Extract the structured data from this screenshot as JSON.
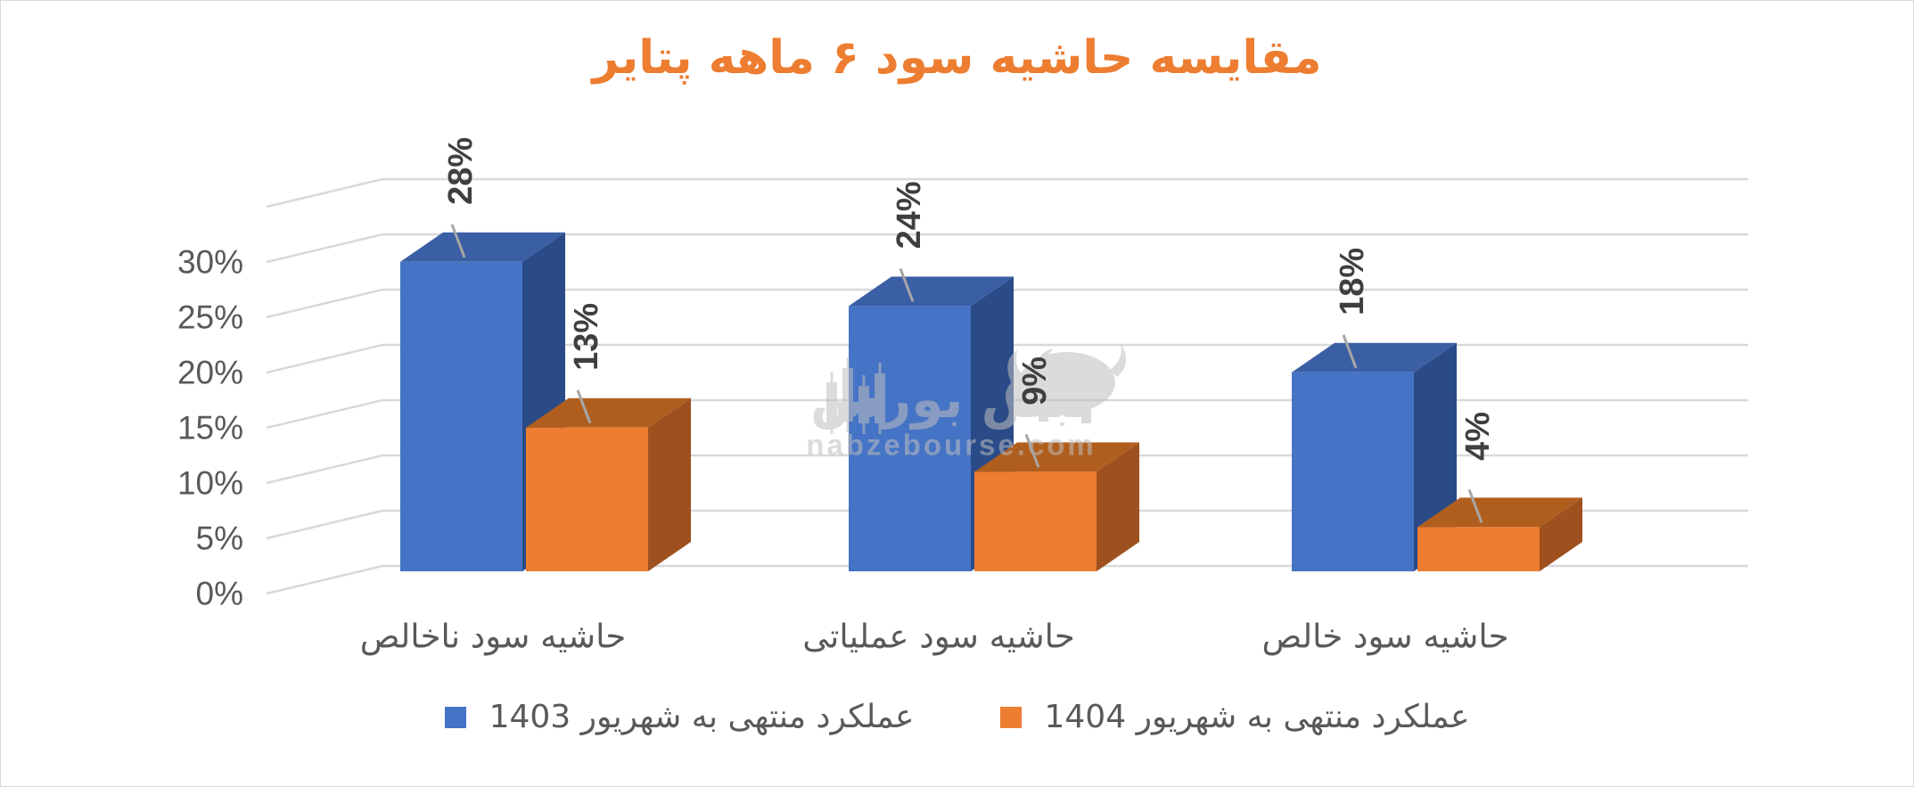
{
  "title": {
    "text": "مقایسه حاشیه سود ۶ ماهه پتایر",
    "color": "#ED7D31"
  },
  "chart_data": {
    "type": "bar",
    "projection": "3d",
    "title": "مقایسه حاشیه سود ۶ ماهه پتایر",
    "categories": [
      "حاشیه سود ناخالص",
      "حاشیه سود عملیاتی",
      "حاشیه سود خالص"
    ],
    "series": [
      {
        "name": "عملکرد منتهی به شهریور 1403",
        "values": [
          28,
          24,
          18
        ],
        "data_labels": [
          "28%",
          "24%",
          "18%"
        ],
        "colors": {
          "front": "#4573C5",
          "top": "#3B5FA4",
          "side": "#2A4B88"
        }
      },
      {
        "name": "عملکرد منتهی به شهریور 1404",
        "values": [
          13,
          9,
          4
        ],
        "data_labels": [
          "13%",
          "9%",
          "4%"
        ],
        "colors": {
          "front": "#ED7D31",
          "top": "#B05E1E",
          "side": "#9E511F"
        }
      }
    ],
    "y_axis": {
      "min": 0,
      "max": 35,
      "step": 5,
      "tick_labels": [
        "0%",
        "5%",
        "10%",
        "15%",
        "20%",
        "25%",
        "30%"
      ]
    },
    "grid": true,
    "legend_position": "bottom",
    "gridline_color": "#D9D9D9",
    "axis_text_color": "#595959",
    "data_label_color": "#3F3F3F",
    "leader_line_color": "#A6A6A6"
  },
  "legend": {
    "items": [
      {
        "label": "عملکرد منتهی به شهریور 1403",
        "color": "#4573C5"
      },
      {
        "label": "عملکرد منتهی به شهریور 1404",
        "color": "#ED7D31"
      }
    ]
  },
  "watermark": {
    "brand_text": "نبض بورس",
    "site_text": "nabzebourse.com",
    "color": "#BFBFBF"
  }
}
